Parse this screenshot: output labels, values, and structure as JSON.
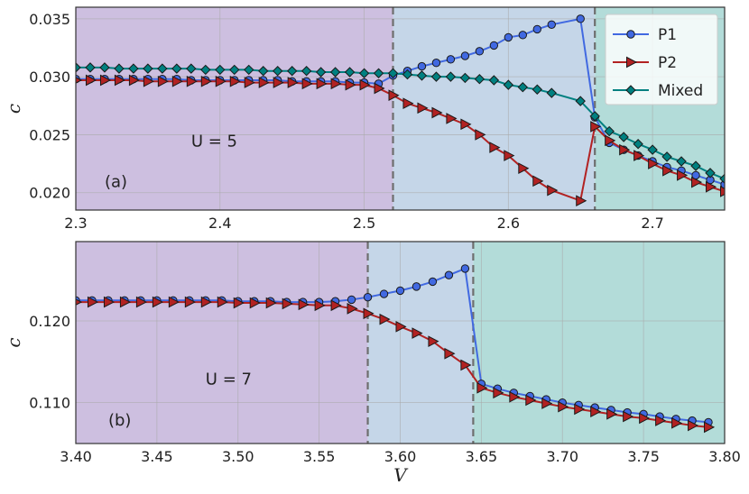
{
  "chart_data": [
    {
      "type": "line",
      "xlim": [
        2.3,
        2.75
      ],
      "ylim": [
        0.0185,
        0.036
      ],
      "xticks": [
        "2.3",
        "2.4",
        "2.5",
        "2.6",
        "2.7"
      ],
      "yticks": [
        "0.020",
        "0.025",
        "0.030",
        "0.035"
      ],
      "ylabel": "c",
      "grid": true,
      "regions": [
        {
          "from": 2.3,
          "to": 2.52,
          "color": "#cdbfe0"
        },
        {
          "from": 2.52,
          "to": 2.66,
          "color": "#c5d6e8"
        },
        {
          "from": 2.66,
          "to": 2.75,
          "color": "#b3dcd9"
        }
      ],
      "vlines": [
        2.52,
        2.66
      ],
      "annotations": [
        {
          "text": "U = 5",
          "x": 2.38,
          "y": 0.024
        },
        {
          "text": "(a)",
          "x": 2.32,
          "y": 0.0205
        }
      ],
      "legend": {
        "placement": "top-right",
        "entries": [
          "P1",
          "P2",
          "Mixed"
        ]
      },
      "series": [
        {
          "name": "P1",
          "color": "#4169e1",
          "marker": "circle",
          "x": [
            2.3,
            2.31,
            2.32,
            2.33,
            2.34,
            2.35,
            2.36,
            2.37,
            2.38,
            2.39,
            2.4,
            2.41,
            2.42,
            2.43,
            2.44,
            2.45,
            2.46,
            2.47,
            2.48,
            2.49,
            2.5,
            2.51,
            2.52,
            2.53,
            2.54,
            2.55,
            2.56,
            2.57,
            2.58,
            2.59,
            2.6,
            2.61,
            2.62,
            2.63,
            2.65,
            2.66,
            2.67,
            2.68,
            2.69,
            2.7,
            2.71,
            2.72,
            2.73,
            2.74,
            2.75
          ],
          "y": [
            0.0298,
            0.0298,
            0.0298,
            0.0298,
            0.0298,
            0.0298,
            0.0298,
            0.0298,
            0.0297,
            0.0297,
            0.0297,
            0.0297,
            0.0297,
            0.0297,
            0.0297,
            0.0296,
            0.0296,
            0.0296,
            0.0296,
            0.0295,
            0.0295,
            0.0294,
            0.0301,
            0.0305,
            0.0309,
            0.0312,
            0.0315,
            0.0318,
            0.0322,
            0.0327,
            0.0334,
            0.0336,
            0.0341,
            0.0345,
            0.035,
            0.0265,
            0.0243,
            0.0237,
            0.0232,
            0.0227,
            0.0222,
            0.0219,
            0.0215,
            0.0211,
            0.0207
          ]
        },
        {
          "name": "P2",
          "color": "#b22222",
          "marker": "triangle-right",
          "x": [
            2.3,
            2.31,
            2.32,
            2.33,
            2.34,
            2.35,
            2.36,
            2.37,
            2.38,
            2.39,
            2.4,
            2.41,
            2.42,
            2.43,
            2.44,
            2.45,
            2.46,
            2.47,
            2.48,
            2.49,
            2.5,
            2.51,
            2.52,
            2.53,
            2.54,
            2.55,
            2.56,
            2.57,
            2.58,
            2.59,
            2.6,
            2.61,
            2.62,
            2.63,
            2.65,
            2.66,
            2.67,
            2.68,
            2.69,
            2.7,
            2.71,
            2.72,
            2.73,
            2.74,
            2.75
          ],
          "y": [
            0.0297,
            0.0297,
            0.0297,
            0.0297,
            0.0297,
            0.0296,
            0.0296,
            0.0296,
            0.0296,
            0.0296,
            0.0296,
            0.0296,
            0.0295,
            0.0295,
            0.0295,
            0.0295,
            0.0294,
            0.0294,
            0.0294,
            0.0293,
            0.0293,
            0.029,
            0.0284,
            0.0277,
            0.0273,
            0.0269,
            0.0264,
            0.0259,
            0.025,
            0.0239,
            0.0232,
            0.0221,
            0.021,
            0.0202,
            0.0193,
            0.0257,
            0.0245,
            0.0237,
            0.0232,
            0.0225,
            0.0219,
            0.0215,
            0.0209,
            0.0205,
            0.0201
          ]
        },
        {
          "name": "Mixed",
          "color": "#008080",
          "marker": "diamond",
          "x": [
            2.3,
            2.31,
            2.32,
            2.33,
            2.34,
            2.35,
            2.36,
            2.37,
            2.38,
            2.39,
            2.4,
            2.41,
            2.42,
            2.43,
            2.44,
            2.45,
            2.46,
            2.47,
            2.48,
            2.49,
            2.5,
            2.51,
            2.52,
            2.53,
            2.54,
            2.55,
            2.56,
            2.57,
            2.58,
            2.59,
            2.6,
            2.61,
            2.62,
            2.63,
            2.65,
            2.66,
            2.67,
            2.68,
            2.69,
            2.7,
            2.71,
            2.72,
            2.73,
            2.74,
            2.75
          ],
          "y": [
            0.0308,
            0.0308,
            0.0308,
            0.0307,
            0.0307,
            0.0307,
            0.0307,
            0.0307,
            0.0307,
            0.0306,
            0.0306,
            0.0306,
            0.0306,
            0.0305,
            0.0305,
            0.0305,
            0.0305,
            0.0304,
            0.0304,
            0.0304,
            0.0303,
            0.0303,
            0.0303,
            0.0302,
            0.0301,
            0.03,
            0.03,
            0.0299,
            0.0298,
            0.0297,
            0.0293,
            0.0291,
            0.0289,
            0.0286,
            0.0279,
            0.0266,
            0.0253,
            0.0248,
            0.0242,
            0.0237,
            0.0231,
            0.0227,
            0.0223,
            0.0217,
            0.0212
          ]
        }
      ]
    },
    {
      "type": "line",
      "xlim": [
        3.4,
        3.8
      ],
      "ylim": [
        0.105,
        0.1297
      ],
      "xticks": [
        "3.40",
        "3.45",
        "3.50",
        "3.55",
        "3.60",
        "3.65",
        "3.70",
        "3.75",
        "3.80"
      ],
      "yticks": [
        "0.110",
        "0.120"
      ],
      "ylabel": "c",
      "xlabel": "V",
      "grid": true,
      "regions": [
        {
          "from": 3.4,
          "to": 3.58,
          "color": "#cdbfe0"
        },
        {
          "from": 3.58,
          "to": 3.645,
          "color": "#c5d6e8"
        },
        {
          "from": 3.645,
          "to": 3.8,
          "color": "#b3dcd9"
        }
      ],
      "vlines": [
        3.58,
        3.645
      ],
      "annotations": [
        {
          "text": "U = 7",
          "x": 3.48,
          "y": 0.1122
        },
        {
          "text": "(b)",
          "x": 3.42,
          "y": 0.1072
        }
      ],
      "series": [
        {
          "name": "P1",
          "color": "#4169e1",
          "marker": "circle",
          "x": [
            3.4,
            3.41,
            3.42,
            3.43,
            3.44,
            3.45,
            3.46,
            3.47,
            3.48,
            3.49,
            3.5,
            3.51,
            3.52,
            3.53,
            3.54,
            3.55,
            3.56,
            3.57,
            3.58,
            3.59,
            3.6,
            3.61,
            3.62,
            3.63,
            3.64,
            3.65,
            3.66,
            3.67,
            3.68,
            3.69,
            3.7,
            3.71,
            3.72,
            3.73,
            3.74,
            3.75,
            3.76,
            3.77,
            3.78,
            3.79
          ],
          "y": [
            0.1225,
            0.1225,
            0.1225,
            0.1225,
            0.1225,
            0.1225,
            0.1225,
            0.1225,
            0.1225,
            0.1225,
            0.1224,
            0.1224,
            0.1224,
            0.1223,
            0.1223,
            0.1223,
            0.1224,
            0.1226,
            0.1229,
            0.1233,
            0.1237,
            0.1242,
            0.1248,
            0.1256,
            0.1264,
            0.1123,
            0.1117,
            0.1112,
            0.1108,
            0.1104,
            0.11,
            0.1097,
            0.1094,
            0.1091,
            0.1088,
            0.1086,
            0.1083,
            0.108,
            0.1078,
            0.1076
          ]
        },
        {
          "name": "P2",
          "color": "#b22222",
          "marker": "triangle-right",
          "x": [
            3.4,
            3.41,
            3.42,
            3.43,
            3.44,
            3.45,
            3.46,
            3.47,
            3.48,
            3.49,
            3.5,
            3.51,
            3.52,
            3.53,
            3.54,
            3.55,
            3.56,
            3.57,
            3.58,
            3.59,
            3.6,
            3.61,
            3.62,
            3.63,
            3.64,
            3.65,
            3.66,
            3.67,
            3.68,
            3.69,
            3.7,
            3.71,
            3.72,
            3.73,
            3.74,
            3.75,
            3.76,
            3.77,
            3.78,
            3.79
          ],
          "y": [
            0.1223,
            0.1223,
            0.1223,
            0.1223,
            0.1223,
            0.1223,
            0.1223,
            0.1223,
            0.1223,
            0.1223,
            0.1222,
            0.1222,
            0.1222,
            0.1221,
            0.122,
            0.1219,
            0.1219,
            0.1215,
            0.1209,
            0.1202,
            0.1193,
            0.1185,
            0.1175,
            0.116,
            0.1146,
            0.1118,
            0.1112,
            0.1107,
            0.1103,
            0.1099,
            0.1095,
            0.1092,
            0.1089,
            0.1086,
            0.1083,
            0.1081,
            0.1078,
            0.1075,
            0.1072,
            0.107
          ]
        }
      ]
    }
  ]
}
